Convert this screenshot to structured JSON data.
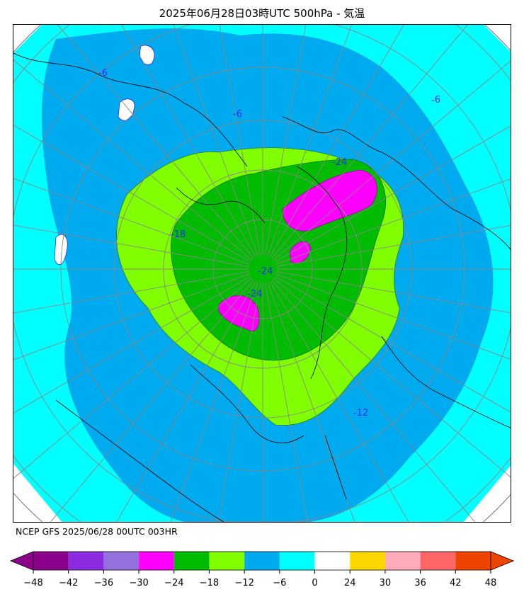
{
  "title": "2025年06月28日03時UTC 500hPa - 気温",
  "source_label": "NCEP GFS 2025/06/28 00UTC 003HR",
  "map": {
    "projection": "north-polar-stereographic",
    "variable": "temperature",
    "level": "500hPa",
    "contour_labels": [
      "-24",
      "-24",
      "-24",
      "-18",
      "-12",
      "-6",
      "-6",
      "-6"
    ]
  },
  "colorbar": {
    "ticks": [
      "−48",
      "−42",
      "−36",
      "−30",
      "−24",
      "−18",
      "−12",
      "−6",
      "0",
      "24",
      "30",
      "36",
      "42",
      "48"
    ],
    "colors": [
      "#8b008b",
      "#8b2be2",
      "#9370db",
      "#ff00ff",
      "#00bb00",
      "#7fff00",
      "#00aaee",
      "#00ffff",
      "#ffffff",
      "#ffd700",
      "#ffaabb",
      "#ff6666",
      "#ee4400"
    ],
    "extend": "both"
  }
}
